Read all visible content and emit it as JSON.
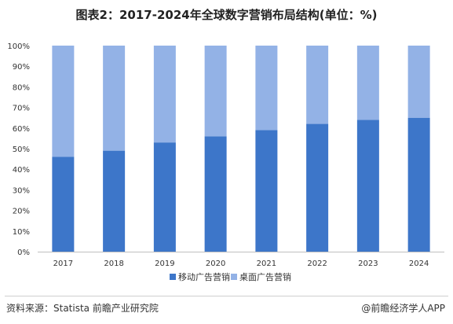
{
  "chart_data": {
    "type": "bar",
    "stacked": true,
    "title": "图表2：2017-2024年全球数字营销布局结构(单位：%)",
    "categories": [
      "2017",
      "2018",
      "2019",
      "2020",
      "2021",
      "2022",
      "2023",
      "2024"
    ],
    "series": [
      {
        "name": "移动广告营销",
        "color": "#3d76c9",
        "values": [
          46,
          49,
          53,
          56,
          59,
          62,
          64,
          65
        ]
      },
      {
        "name": "桌面广告营销",
        "color": "#93b2e6",
        "values": [
          54,
          51,
          47,
          44,
          41,
          38,
          36,
          35
        ]
      }
    ],
    "ylim": [
      0,
      100
    ],
    "yticks": [
      "0%",
      "10%",
      "20%",
      "30%",
      "40%",
      "50%",
      "60%",
      "70%",
      "80%",
      "90%",
      "100%"
    ],
    "grid": false,
    "legend_position": "bottom-center"
  },
  "footer": {
    "source": "资料来源：Statista 前瞻产业研究院",
    "credit": "@前瞻经济学人APP"
  }
}
